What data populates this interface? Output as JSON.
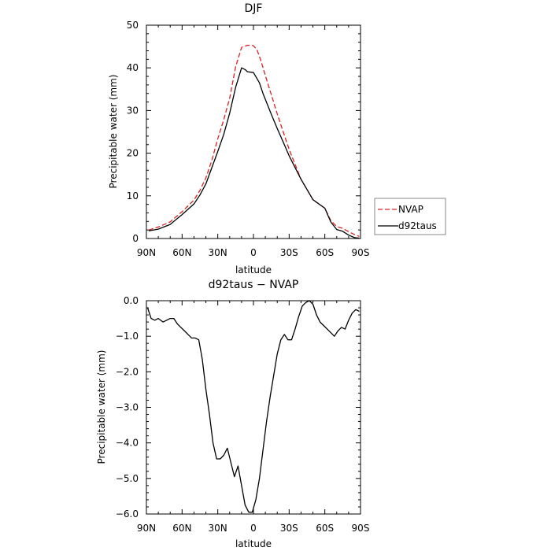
{
  "chart_data": [
    {
      "type": "line",
      "title": "DJF",
      "xlabel": "latitude",
      "ylabel": "Precipitable water (mm)",
      "xlim": [
        90,
        -90
      ],
      "ylim": [
        0,
        50
      ],
      "xticks": [
        90,
        60,
        30,
        0,
        -30,
        -60,
        -90
      ],
      "xtick_labels": [
        "90N",
        "60N",
        "30N",
        "0",
        "30S",
        "60S",
        "90S"
      ],
      "yticks": [
        0,
        10,
        20,
        30,
        40,
        50
      ],
      "ytick_labels": [
        "0",
        "10",
        "20",
        "30",
        "40",
        "50"
      ],
      "legend": "outside-right",
      "series": [
        {
          "name": "NVAP",
          "color": "#e02020",
          "style": "dashed",
          "x": [
            88,
            80,
            70,
            60,
            50,
            45,
            40,
            35,
            30,
            25,
            20,
            15,
            10,
            5,
            2,
            0,
            -3,
            -5,
            -8,
            -10,
            -15,
            -20,
            -25,
            -30,
            -40,
            -50,
            -60,
            -65,
            -70,
            -75,
            -80,
            -85,
            -89
          ],
          "y": [
            2.0,
            2.7,
            3.9,
            6.3,
            9.0,
            11.3,
            14.2,
            18.3,
            23.4,
            27.8,
            32.9,
            40.2,
            44.8,
            45.3,
            45.3,
            45.2,
            44.2,
            42.7,
            40.1,
            38.2,
            33.7,
            29.2,
            25.0,
            20.9,
            13.9,
            9.1,
            7.1,
            4.2,
            2.8,
            2.4,
            1.6,
            0.9,
            0.5
          ]
        },
        {
          "name": "d92taus",
          "color": "#000000",
          "style": "solid",
          "x": [
            88,
            80,
            70,
            60,
            50,
            45,
            40,
            35,
            30,
            25,
            20,
            15,
            10,
            7,
            5,
            0,
            -5,
            -8,
            -10,
            -15,
            -20,
            -25,
            -30,
            -40,
            -50,
            -60,
            -65,
            -70,
            -75,
            -80,
            -85,
            -89
          ],
          "y": [
            1.8,
            2.2,
            3.3,
            5.6,
            8.1,
            10.2,
            12.8,
            16.6,
            20.4,
            24.4,
            29.4,
            35.4,
            40.0,
            39.6,
            39.1,
            38.9,
            36.5,
            34.0,
            32.6,
            29.1,
            25.8,
            22.6,
            19.4,
            13.9,
            9.1,
            7.1,
            3.9,
            2.1,
            1.7,
            0.8,
            0.2,
            0.1
          ]
        }
      ]
    },
    {
      "type": "line",
      "title": "d92taus − NVAP",
      "xlabel": "latitude",
      "ylabel": "Precipitable water (mm)",
      "xlim": [
        90,
        -90
      ],
      "ylim": [
        -6.0,
        0.0
      ],
      "xticks": [
        90,
        60,
        30,
        0,
        -30,
        -60,
        -90
      ],
      "xtick_labels": [
        "90N",
        "60N",
        "30N",
        "0",
        "30S",
        "60S",
        "90S"
      ],
      "yticks": [
        0,
        -1,
        -2,
        -3,
        -4,
        -5,
        -6
      ],
      "ytick_labels": [
        "0.0",
        "−1.0",
        "−2.0",
        "−3.0",
        "−4.0",
        "−5.0",
        "−6.0"
      ],
      "series": [
        {
          "color": "#000000",
          "style": "solid",
          "x": [
            89,
            86,
            83,
            80,
            76,
            73,
            70,
            67,
            64,
            61,
            58,
            55,
            52,
            49,
            46,
            43,
            40,
            37,
            34,
            31,
            28,
            25,
            22,
            19,
            16,
            13,
            10,
            7,
            4,
            1,
            -2,
            -5,
            -8,
            -11,
            -14,
            -17,
            -20,
            -23,
            -26,
            -29,
            -32,
            -35,
            -38,
            -41,
            -44,
            -47,
            -50,
            -53,
            -56,
            -59,
            -62,
            -65,
            -68,
            -71,
            -74,
            -77,
            -80,
            -83,
            -86,
            -89
          ],
          "y": [
            -0.2,
            -0.5,
            -0.55,
            -0.5,
            -0.6,
            -0.55,
            -0.5,
            -0.5,
            -0.65,
            -0.75,
            -0.85,
            -0.95,
            -1.05,
            -1.05,
            -1.1,
            -1.65,
            -2.5,
            -3.2,
            -4.0,
            -4.45,
            -4.45,
            -4.35,
            -4.15,
            -4.55,
            -4.95,
            -4.65,
            -5.2,
            -5.75,
            -5.95,
            -5.95,
            -5.6,
            -5.0,
            -4.2,
            -3.4,
            -2.7,
            -2.1,
            -1.5,
            -1.1,
            -0.95,
            -1.1,
            -1.1,
            -0.8,
            -0.45,
            -0.15,
            -0.05,
            0.0,
            -0.1,
            -0.4,
            -0.6,
            -0.7,
            -0.8,
            -0.9,
            -1.0,
            -0.85,
            -0.75,
            -0.8,
            -0.55,
            -0.35,
            -0.25,
            -0.3
          ]
        }
      ]
    }
  ]
}
